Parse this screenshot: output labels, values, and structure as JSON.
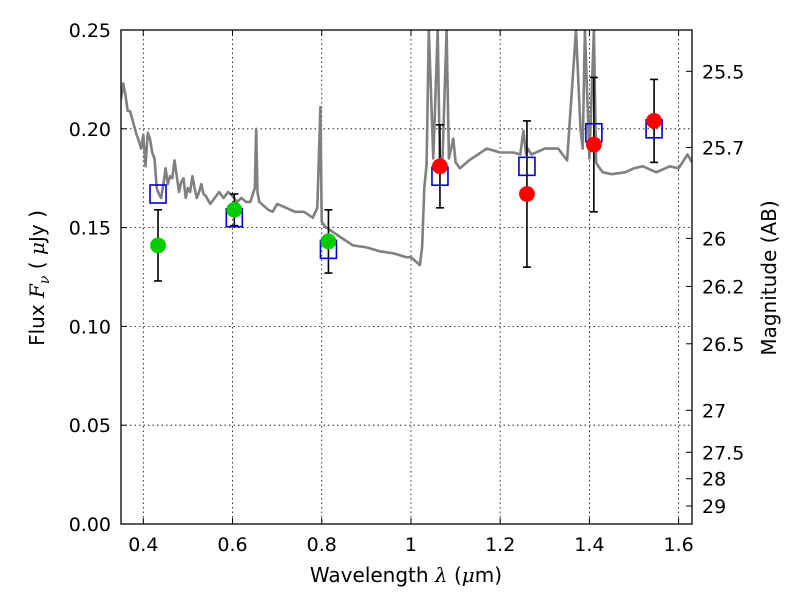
{
  "chart_data": {
    "type": "scatter",
    "xlabel": {
      "prefix": "Wavelength  ",
      "symbol": "λ",
      "unit_open": " (",
      "unit_mu": "μ",
      "unit_close": "m)"
    },
    "ylabel": {
      "prefix": "Flux  ",
      "symbol": "F",
      "subscript": "ν",
      "unit_open": "  ( ",
      "unit_mu": "μ",
      "unit_close": "Jy )"
    },
    "y2label": "Magnitude (AB)",
    "xlim": [
      0.35,
      1.63
    ],
    "ylim": [
      0.0,
      0.25
    ],
    "xticks": [
      0.4,
      0.6,
      0.8,
      1.0,
      1.2,
      1.4,
      1.6
    ],
    "xtick_labels": [
      "0.4",
      "0.6",
      "0.8",
      "1",
      "1.2",
      "1.4",
      "1.6"
    ],
    "yticks": [
      0.0,
      0.05,
      0.1,
      0.15,
      0.2,
      0.25
    ],
    "ytick_labels": [
      "0.00",
      "0.05",
      "0.10",
      "0.15",
      "0.20",
      "0.25"
    ],
    "mag_ticks": [
      "25.5",
      "25.7",
      "26",
      "26.2",
      "26.5",
      "27",
      "27.5",
      "28",
      "29"
    ],
    "grid": true,
    "model_spectrum": {
      "color": "#808080",
      "x": [
        0.35,
        0.355,
        0.36,
        0.365,
        0.37,
        0.375,
        0.38,
        0.385,
        0.39,
        0.395,
        0.4,
        0.405,
        0.41,
        0.415,
        0.42,
        0.425,
        0.43,
        0.435,
        0.44,
        0.445,
        0.45,
        0.455,
        0.46,
        0.465,
        0.47,
        0.475,
        0.48,
        0.485,
        0.49,
        0.495,
        0.5,
        0.505,
        0.51,
        0.515,
        0.52,
        0.525,
        0.53,
        0.535,
        0.54,
        0.55,
        0.56,
        0.57,
        0.58,
        0.59,
        0.6,
        0.61,
        0.62,
        0.63,
        0.64,
        0.65,
        0.653,
        0.656,
        0.66,
        0.67,
        0.68,
        0.69,
        0.7,
        0.72,
        0.74,
        0.76,
        0.78,
        0.79,
        0.797,
        0.8,
        0.806,
        0.81,
        0.83,
        0.85,
        0.87,
        0.9,
        0.93,
        0.96,
        0.99,
        1.0,
        1.02,
        1.025,
        1.03,
        1.035,
        1.04,
        1.05,
        1.06,
        1.065,
        1.07,
        1.08,
        1.085,
        1.09,
        1.095,
        1.1,
        1.11,
        1.13,
        1.15,
        1.17,
        1.2,
        1.23,
        1.245,
        1.252,
        1.258,
        1.262,
        1.27,
        1.3,
        1.33,
        1.35,
        1.37,
        1.38,
        1.385,
        1.39,
        1.4,
        1.41,
        1.415,
        1.42,
        1.43,
        1.45,
        1.48,
        1.5,
        1.52,
        1.55,
        1.58,
        1.6,
        1.62,
        1.63
      ],
      "y": [
        0.215,
        0.223,
        0.217,
        0.209,
        0.209,
        0.205,
        0.201,
        0.197,
        0.194,
        0.19,
        0.197,
        0.181,
        0.198,
        0.195,
        0.188,
        0.185,
        0.17,
        0.167,
        0.165,
        0.172,
        0.18,
        0.172,
        0.176,
        0.175,
        0.184,
        0.176,
        0.168,
        0.173,
        0.175,
        0.165,
        0.17,
        0.168,
        0.176,
        0.17,
        0.165,
        0.168,
        0.172,
        0.167,
        0.166,
        0.162,
        0.165,
        0.168,
        0.165,
        0.168,
        0.166,
        0.163,
        0.165,
        0.163,
        0.163,
        0.17,
        0.2,
        0.168,
        0.163,
        0.161,
        0.159,
        0.158,
        0.162,
        0.16,
        0.158,
        0.158,
        0.155,
        0.16,
        0.211,
        0.153,
        0.151,
        0.15,
        0.147,
        0.144,
        0.141,
        0.14,
        0.138,
        0.137,
        0.135,
        0.135,
        0.131,
        0.14,
        0.17,
        0.182,
        0.25,
        0.185,
        0.25,
        0.178,
        0.18,
        0.25,
        0.185,
        0.19,
        0.195,
        0.183,
        0.18,
        0.184,
        0.187,
        0.19,
        0.188,
        0.188,
        0.187,
        0.199,
        0.187,
        0.19,
        0.187,
        0.19,
        0.19,
        0.184,
        0.25,
        0.2,
        0.19,
        0.25,
        0.185,
        0.25,
        0.183,
        0.181,
        0.178,
        0.177,
        0.178,
        0.18,
        0.181,
        0.178,
        0.181,
        0.18,
        0.187,
        0.183
      ]
    },
    "series": [
      {
        "marker": "square",
        "color": "#0000cc",
        "x": [
          0.433,
          0.604,
          0.815,
          1.065,
          1.26,
          1.41,
          1.545
        ],
        "y": [
          0.167,
          0.155,
          0.139,
          0.176,
          0.181,
          0.198,
          0.2
        ]
      },
      {
        "marker": "circle",
        "color": "#00cc00",
        "x": [
          0.433,
          0.604,
          0.815
        ],
        "y": [
          0.141,
          0.159,
          0.143
        ],
        "yerr": [
          0.018,
          0.008,
          0.016
        ]
      },
      {
        "marker": "circle",
        "color": "#ff0000",
        "x": [
          1.065,
          1.26,
          1.41,
          1.545
        ],
        "y": [
          0.181,
          0.167,
          0.192,
          0.204
        ],
        "yerr": [
          0.021,
          0.037,
          0.034,
          0.021
        ]
      }
    ]
  }
}
